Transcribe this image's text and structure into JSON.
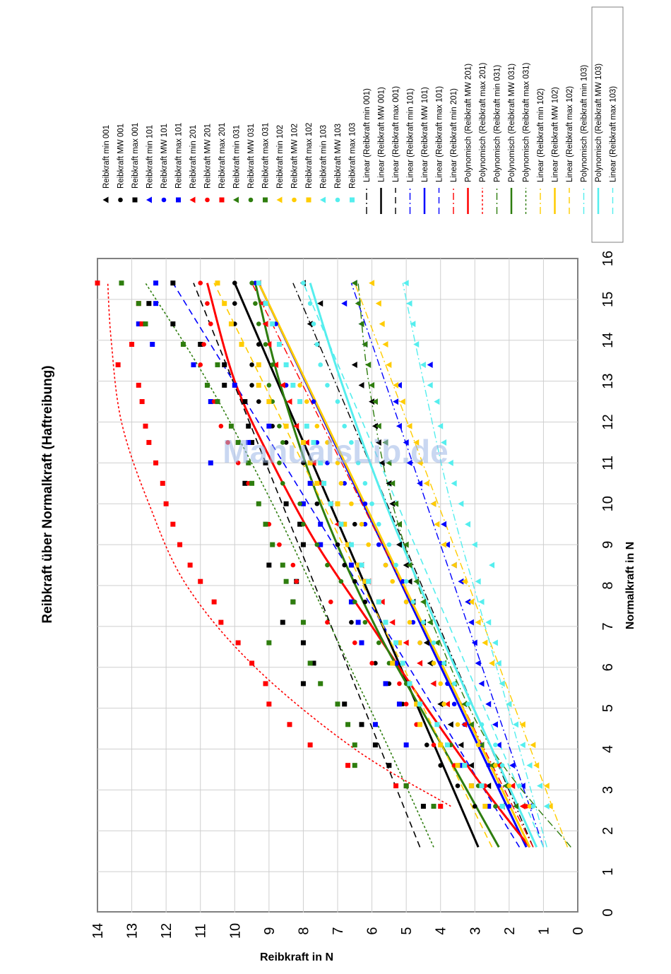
{
  "chart_data": {
    "type": "scatter",
    "title": "Reibkraft über Normalkraft (Haftreibung)",
    "xlabel": "Normalkraft in N",
    "ylabel": "Reibkraft in N",
    "xlim": [
      0,
      16
    ],
    "ylim": [
      0,
      14
    ],
    "x_ticks": [
      "0",
      "1",
      "2",
      "3",
      "4",
      "5",
      "6",
      "7",
      "8",
      "9",
      "10",
      "11",
      "12",
      "13",
      "14",
      "15",
      "16"
    ],
    "y_ticks": [
      "0",
      "1",
      "2",
      "3",
      "4",
      "5",
      "6",
      "7",
      "8",
      "9",
      "10",
      "11",
      "12",
      "13",
      "14"
    ],
    "grid": true,
    "legend_position": "right",
    "watermark": "ManualsLib.de",
    "colors": {
      "001": "#000000",
      "101": "#0000ff",
      "201": "#ff0000",
      "031": "#2e7d0e",
      "102": "#ffcc00",
      "103": "#55eeee"
    },
    "x": [
      2.6,
      3.1,
      3.6,
      4.1,
      4.6,
      5.1,
      5.6,
      6.1,
      6.6,
      7.1,
      7.6,
      8.1,
      8.5,
      9.0,
      9.5,
      10.0,
      10.5,
      11.0,
      11.5,
      11.9,
      12.5,
      12.9,
      13.4,
      13.9,
      14.4,
      14.9,
      15.4
    ],
    "series": [
      {
        "name": "Reibkraft min 001",
        "marker": "triangle",
        "color": "#000000",
        "values": [
          2.2,
          2.6,
          3.1,
          3.4,
          3.7,
          4.0,
          4.2,
          4.3,
          4.4,
          4.5,
          4.8,
          4.9,
          5.0,
          5.2,
          5.2,
          5.4,
          5.5,
          5.7,
          5.8,
          5.9,
          6.0,
          6.3,
          6.5,
          7.6,
          7.8,
          7.5,
          8.0
        ]
      },
      {
        "name": "Reibkraft MW 001",
        "marker": "circle",
        "color": "#000000",
        "values": [
          3.0,
          3.5,
          4.0,
          4.4,
          4.7,
          5.1,
          5.5,
          5.9,
          6.3,
          6.6,
          6.2,
          6.5,
          6.8,
          7.0,
          6.5,
          7.6,
          7.8,
          8.0,
          8.5,
          8.9,
          9.3,
          9.5,
          9.5,
          9.3,
          10.0,
          10.0,
          10.0
        ]
      },
      {
        "name": "Reibkraft max 001",
        "marker": "square",
        "color": "#000000",
        "values": [
          4.5,
          5.0,
          5.5,
          5.9,
          6.3,
          6.8,
          8.0,
          7.7,
          8.0,
          8.6,
          8.3,
          8.2,
          9.0,
          8.0,
          8.1,
          8.5,
          9.7,
          9.1,
          9.5,
          9.6,
          9.7,
          10.3,
          10.3,
          11.0,
          11.8,
          12.5,
          11.8
        ]
      },
      {
        "name": "Reibkraft min 101",
        "marker": "triangle",
        "color": "#0000ff",
        "values": [
          1.4,
          1.6,
          1.9,
          2.3,
          2.4,
          2.6,
          2.8,
          2.9,
          3.0,
          3.1,
          3.2,
          3.4,
          3.6,
          3.8,
          3.9,
          4.2,
          4.6,
          4.9,
          5.0,
          5.2,
          5.3,
          5.2,
          4.3,
          6.2,
          6.3,
          6.8,
          6.5
        ]
      },
      {
        "name": "Reibkraft MW 101",
        "marker": "circle",
        "color": "#0000ff",
        "values": [
          2.0,
          2.3,
          2.6,
          2.8,
          3.3,
          3.6,
          3.8,
          4.0,
          4.6,
          4.8,
          5.0,
          5.1,
          5.6,
          5.8,
          6.2,
          6.2,
          6.8,
          7.3,
          7.6,
          7.9,
          7.7,
          8.5,
          8.5,
          8.7,
          8.8,
          9.1,
          9.4
        ]
      },
      {
        "name": "Reibkraft max 101",
        "marker": "square",
        "color": "#0000ff",
        "values": [
          2.6,
          3.1,
          3.4,
          5.0,
          5.9,
          5.2,
          5.6,
          5.3,
          6.3,
          6.4,
          6.6,
          6.2,
          6.6,
          7.5,
          7.5,
          8.0,
          7.8,
          10.7,
          9.6,
          9.0,
          10.7,
          10.0,
          11.2,
          12.4,
          12.8,
          12.3,
          12.3
        ]
      },
      {
        "name": "Reibkraft min 201",
        "marker": "triangle",
        "color": "#ff0000",
        "values": [
          1.6,
          1.9,
          2.3,
          2.8,
          3.3,
          3.8,
          4.2,
          4.6,
          5.0,
          5.4,
          5.7,
          6.1,
          6.3,
          6.7,
          7.0,
          7.2,
          7.5,
          7.7,
          7.9,
          8.2,
          8.4,
          8.6,
          8.8,
          9.0,
          9.1,
          9.2,
          9.3
        ]
      },
      {
        "name": "Reibkraft MW 201",
        "marker": "circle",
        "color": "#ff0000",
        "values": [
          1.5,
          2.7,
          3.6,
          4.2,
          4.7,
          5.0,
          5.2,
          6.0,
          6.5,
          7.3,
          7.2,
          8.2,
          8.3,
          8.7,
          9.0,
          9.3,
          9.6,
          9.9,
          10.2,
          10.4,
          10.6,
          10.8,
          11.0,
          10.9,
          10.7,
          10.8,
          11.0
        ]
      },
      {
        "name": "Reibkraft max 201",
        "marker": "square",
        "color": "#ff0000",
        "values": [
          4.0,
          5.3,
          6.7,
          7.8,
          8.4,
          9.0,
          9.1,
          9.5,
          9.9,
          10.4,
          10.6,
          11.0,
          11.3,
          11.6,
          11.8,
          12.0,
          12.1,
          12.3,
          12.5,
          12.6,
          12.7,
          12.8,
          13.4,
          13.0,
          12.7,
          12.8,
          14.0
        ]
      },
      {
        "name": "Reibkraft min 031",
        "marker": "triangle",
        "color": "#2e7d0e",
        "values": [
          1.8,
          2.1,
          2.5,
          2.8,
          3.1,
          3.3,
          3.6,
          3.9,
          4.1,
          4.3,
          4.5,
          4.7,
          4.9,
          5.0,
          5.2,
          5.3,
          5.4,
          5.5,
          5.6,
          5.8,
          5.9,
          6.0,
          6.1,
          6.2,
          6.3,
          6.4,
          6.5
        ]
      },
      {
        "name": "Reibkraft MW 031",
        "marker": "circle",
        "color": "#2e7d0e",
        "values": [
          2.4,
          2.9,
          3.3,
          3.7,
          4.1,
          4.6,
          5.0,
          5.5,
          5.8,
          6.2,
          6.5,
          6.9,
          7.3,
          7.6,
          8.0,
          8.1,
          8.6,
          8.7,
          8.6,
          8.7,
          8.9,
          9.0,
          8.9,
          9.1,
          9.3,
          9.4,
          9.5
        ]
      },
      {
        "name": "Reibkraft max 031",
        "marker": "square",
        "color": "#2e7d0e",
        "values": [
          4.2,
          5.0,
          6.5,
          6.5,
          6.7,
          7.0,
          7.5,
          7.8,
          9.0,
          8.0,
          8.3,
          8.5,
          8.6,
          8.9,
          9.1,
          9.3,
          9.5,
          9.6,
          9.9,
          10.1,
          10.5,
          10.8,
          10.5,
          11.5,
          12.6,
          12.8,
          13.3
        ]
      },
      {
        "name": "Reibkraft min 102",
        "marker": "triangle",
        "color": "#ffcc00",
        "values": [
          0.8,
          0.9,
          1.2,
          1.3,
          1.6,
          2.0,
          2.2,
          2.5,
          2.7,
          2.9,
          3.1,
          3.3,
          3.6,
          3.9,
          4.1,
          4.2,
          4.4,
          4.6,
          4.7,
          4.9,
          5.1,
          5.3,
          5.5,
          5.6,
          5.7,
          5.8,
          6.0
        ]
      },
      {
        "name": "Reibkraft MW 102",
        "marker": "circle",
        "color": "#ffcc00",
        "values": [
          1.4,
          2.0,
          2.4,
          2.9,
          3.5,
          3.9,
          4.0,
          4.2,
          4.6,
          4.9,
          5.0,
          5.4,
          5.6,
          6.1,
          6.3,
          6.6,
          6.9,
          7.0,
          7.3,
          7.6,
          7.9,
          8.1,
          8.5,
          8.7,
          8.9,
          9.1,
          9.3
        ]
      },
      {
        "name": "Reibkraft max 102",
        "marker": "square",
        "color": "#ffcc00",
        "values": [
          2.7,
          3.1,
          3.5,
          4.0,
          4.6,
          4.7,
          4.9,
          5.4,
          5.2,
          5.6,
          5.8,
          6.2,
          6.4,
          6.7,
          6.8,
          7.0,
          7.6,
          7.8,
          8.0,
          8.5,
          9.0,
          9.3,
          9.3,
          9.8,
          10.1,
          10.3,
          10.5
        ]
      },
      {
        "name": "Reibkraft min 103",
        "marker": "triangle",
        "color": "#55eeee",
        "values": [
          0.9,
          1.1,
          1.4,
          1.6,
          1.8,
          2.0,
          2.2,
          2.3,
          2.4,
          2.6,
          2.8,
          2.9,
          2.5,
          3.0,
          3.2,
          3.4,
          3.6,
          3.7,
          3.9,
          4.0,
          4.1,
          4.3,
          4.5,
          4.7,
          4.8,
          4.9,
          5.0
        ]
      },
      {
        "name": "Reibkraft MW 103",
        "marker": "circle",
        "color": "#55eeee",
        "values": [
          1.3,
          1.7,
          2.2,
          2.4,
          2.8,
          3.2,
          3.6,
          3.9,
          4.2,
          4.5,
          4.8,
          5.0,
          5.3,
          5.5,
          5.8,
          6.0,
          6.2,
          6.4,
          6.6,
          6.8,
          7.0,
          7.3,
          7.5,
          7.6,
          7.7,
          7.8,
          8.0
        ]
      },
      {
        "name": "Reibkraft max 103",
        "marker": "square",
        "color": "#55eeee",
        "values": [
          2.2,
          2.8,
          3.3,
          3.8,
          4.1,
          4.6,
          4.9,
          5.1,
          5.3,
          5.6,
          5.8,
          6.1,
          6.3,
          6.6,
          6.9,
          7.2,
          7.4,
          7.5,
          7.7,
          7.9,
          8.1,
          8.3,
          8.5,
          8.7,
          8.9,
          9.1,
          9.3
        ]
      }
    ],
    "trendlines": [
      {
        "name": "Linear (Reibkraft min 001)",
        "kind": "linear",
        "dash": "dashdot",
        "width": 1.4,
        "color": "#000000",
        "x": [
          1.6,
          15.4
        ],
        "y": [
          1.3,
          8.3
        ]
      },
      {
        "name": "Linear (Reibkraft MW 001)",
        "kind": "linear",
        "dash": "solid",
        "width": 3.0,
        "color": "#000000",
        "x": [
          1.6,
          15.4
        ],
        "y": [
          2.9,
          10.0
        ]
      },
      {
        "name": "Linear (Reibkraft max 001)",
        "kind": "linear",
        "dash": "dash",
        "width": 1.6,
        "color": "#000000",
        "x": [
          1.6,
          15.4
        ],
        "y": [
          4.6,
          11.2
        ]
      },
      {
        "name": "Linear (Reibkraft min 101)",
        "kind": "linear",
        "dash": "dashdot",
        "width": 1.4,
        "color": "#0000ff",
        "x": [
          1.6,
          15.4
        ],
        "y": [
          1.0,
          6.6
        ]
      },
      {
        "name": "Linear (Reibkraft MW 101)",
        "kind": "linear",
        "dash": "solid",
        "width": 3.0,
        "color": "#0000ff",
        "x": [
          1.6,
          15.4
        ],
        "y": [
          1.5,
          9.3
        ]
      },
      {
        "name": "Linear (Reibkraft max 101)",
        "kind": "linear",
        "dash": "dash",
        "width": 1.6,
        "color": "#0000ff",
        "x": [
          1.6,
          15.4
        ],
        "y": [
          1.7,
          11.8
        ]
      },
      {
        "name": "Linear (Reibkraft min 201)",
        "kind": "linear",
        "dash": "dashdot",
        "width": 1.4,
        "color": "#ff0000",
        "x": [
          1.6,
          15.4
        ],
        "y": [
          1.3,
          9.5
        ]
      },
      {
        "name": "Polynomisch (Reibkraft MW 201)",
        "kind": "poly",
        "dash": "solid",
        "width": 3.0,
        "color": "#ff0000",
        "x": [
          1.6,
          3.0,
          5.0,
          7.0,
          9.0,
          11.0,
          13.0,
          15.4
        ],
        "y": [
          1.4,
          2.7,
          4.4,
          6.0,
          7.6,
          8.9,
          10.0,
          10.8
        ]
      },
      {
        "name": "Polynomisch (Reibkraft max 201)",
        "kind": "poly",
        "dash": "dot",
        "width": 1.6,
        "color": "#ff0000",
        "x": [
          2.6,
          4.0,
          6.0,
          8.0,
          10.0,
          12.0,
          14.0,
          15.4
        ],
        "y": [
          3.7,
          6.5,
          9.4,
          11.4,
          12.5,
          13.3,
          13.6,
          13.7
        ]
      },
      {
        "name": "Polynomisch (Reibkraft min 031)",
        "kind": "poly",
        "dash": "dashdot",
        "width": 1.4,
        "color": "#2e7d0e",
        "x": [
          1.6,
          4.0,
          7.0,
          10.0,
          13.0,
          15.4
        ],
        "y": [
          0.2,
          2.5,
          4.2,
          5.4,
          6.1,
          6.4
        ]
      },
      {
        "name": "Polynomisch (Reibkraft MW 031)",
        "kind": "poly",
        "dash": "solid",
        "width": 3.0,
        "color": "#2e7d0e",
        "x": [
          1.6,
          4.0,
          7.0,
          10.0,
          13.0,
          15.4
        ],
        "y": [
          2.3,
          3.9,
          5.9,
          7.5,
          8.7,
          9.4
        ]
      },
      {
        "name": "Polynomisch (Reibkraft max 031)",
        "kind": "poly",
        "dash": "dot",
        "width": 1.6,
        "color": "#2e7d0e",
        "x": [
          1.6,
          4.0,
          7.0,
          10.0,
          13.0,
          15.4
        ],
        "y": [
          4.2,
          5.5,
          7.2,
          8.9,
          10.8,
          12.6
        ]
      },
      {
        "name": "Linear (Reibkraft min 102)",
        "kind": "linear",
        "dash": "dashdot",
        "width": 1.4,
        "color": "#ffcc00",
        "x": [
          1.6,
          15.4
        ],
        "y": [
          0.3,
          6.5
        ]
      },
      {
        "name": "Linear (Reibkraft MW 102)",
        "kind": "linear",
        "dash": "solid",
        "width": 3.0,
        "color": "#ffcc00",
        "x": [
          1.6,
          15.4
        ],
        "y": [
          1.4,
          9.3
        ]
      },
      {
        "name": "Linear (Reibkraft max 102)",
        "kind": "linear",
        "dash": "dash",
        "width": 1.6,
        "color": "#ffcc00",
        "x": [
          1.6,
          15.4
        ],
        "y": [
          2.5,
          10.6
        ]
      },
      {
        "name": "Polynomisch (Reibkraft min 103)",
        "kind": "poly",
        "dash": "dashdot",
        "width": 1.4,
        "color": "#55eeee",
        "x": [
          1.6,
          4.0,
          7.0,
          10.0,
          13.0,
          15.4
        ],
        "y": [
          0.9,
          1.7,
          2.7,
          3.7,
          4.5,
          5.1
        ]
      },
      {
        "name": "Polynomisch (Reibkraft MW 103)",
        "kind": "poly",
        "dash": "solid",
        "width": 3.0,
        "color": "#55eeee",
        "x": [
          1.6,
          4.0,
          7.0,
          10.0,
          13.0,
          15.4
        ],
        "y": [
          1.2,
          2.5,
          4.1,
          5.6,
          6.9,
          7.8
        ]
      },
      {
        "name": "Linear (Reibkraft max 103)",
        "kind": "linear",
        "dash": "dash",
        "width": 1.6,
        "color": "#55eeee",
        "x": [
          1.6,
          15.4
        ],
        "y": [
          1.0,
          8.0
        ]
      }
    ]
  }
}
